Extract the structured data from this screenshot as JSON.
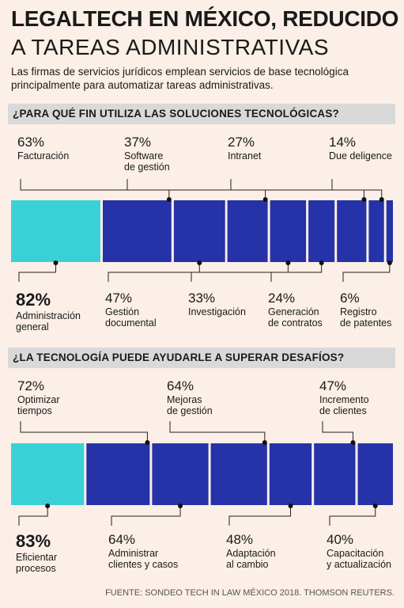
{
  "header": {
    "title_line1": "LEGALTECH EN MÉXICO, REDUCIDO",
    "title_line2": "A TAREAS ADMINISTRATIVAS",
    "subtitle": "Las firmas de servicios jurídicos emplean servicios de base tecnológica principalmente para automatizar tareas administrativas."
  },
  "section1": {
    "heading": "¿PARA QUÉ FIN UTILIZA LAS SOLUCIONES TECNOLÓGICAS?"
  },
  "section2": {
    "heading": "¿LA TECNOLOGÍA PUEDE AYUDARLE A SUPERAR DESAFÍOS?"
  },
  "source": "FUENTE: SONDEO TECH IN LAW MÉXICO 2018. THOMSON REUTERS.",
  "colors": {
    "highlight": "#3ad1d6",
    "segment": "#2532a8",
    "background": "#fbefe7",
    "section_bar": "#d9d9d9"
  },
  "chart_data": [
    {
      "type": "bar",
      "title": "¿PARA QUÉ FIN UTILIZA LAS SOLUCIONES TECNOLÓGICAS?",
      "categories": [
        "Administración general",
        "Facturación",
        "Gestión documental",
        "Software de gestión",
        "Investigación",
        "Generación de contratos",
        "Intranet",
        "Due deligence",
        "Registro de patentes"
      ],
      "category_lines": [
        [
          "Administración",
          "general"
        ],
        [
          "Facturación"
        ],
        [
          "Gestión",
          "documental"
        ],
        [
          "Software",
          "de gestión"
        ],
        [
          "Investigación"
        ],
        [
          "Generación",
          "de contratos"
        ],
        [
          "Intranet"
        ],
        [
          "Due deligence"
        ],
        [
          "Registro",
          "de patentes"
        ]
      ],
      "values": [
        82,
        63,
        47,
        37,
        33,
        24,
        27,
        14,
        6
      ],
      "value_labels": [
        "82%",
        "63%",
        "47%",
        "37%",
        "33%",
        "24%",
        "27%",
        "14%",
        "6%"
      ],
      "positions": [
        "bottom",
        "top",
        "bottom",
        "top",
        "bottom",
        "bottom",
        "top",
        "top",
        "bottom"
      ],
      "highlight_index": 0
    },
    {
      "type": "bar",
      "title": "¿LA TECNOLOGÍA PUEDE AYUDARLE A SUPERAR DESAFÍOS?",
      "categories": [
        "Eficientar procesos",
        "Optimizar tiempos",
        "Administrar clientes y casos",
        "Mejoras de gestión",
        "Adaptación al cambio",
        "Incremento de clientes",
        "Capacitación y actualización"
      ],
      "category_lines": [
        [
          "Eficientar",
          "procesos"
        ],
        [
          "Optimizar",
          "tiempos"
        ],
        [
          "Administrar",
          "clientes y casos"
        ],
        [
          "Mejoras",
          "de gestión"
        ],
        [
          "Adaptación",
          "al cambio"
        ],
        [
          "Incremento",
          "de clientes"
        ],
        [
          "Capacitación",
          "y actualización"
        ]
      ],
      "values": [
        83,
        72,
        64,
        64,
        48,
        47,
        40
      ],
      "value_labels": [
        "83%",
        "72%",
        "64%",
        "64%",
        "48%",
        "47%",
        "40%"
      ],
      "positions": [
        "bottom",
        "top",
        "bottom",
        "top",
        "bottom",
        "top",
        "bottom"
      ],
      "highlight_index": 0
    }
  ]
}
